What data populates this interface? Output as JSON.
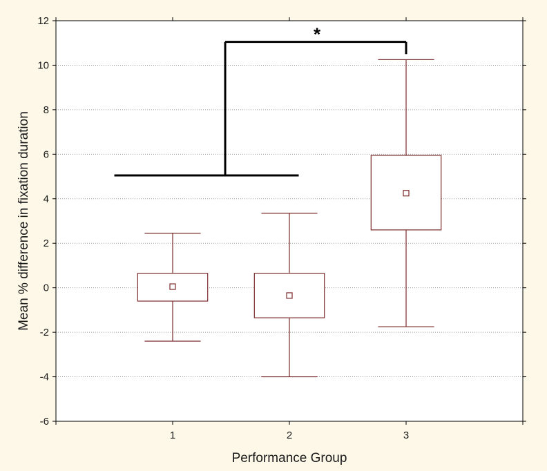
{
  "chart_data": {
    "type": "box",
    "xlabel": "Performance Group",
    "ylabel": "Mean % difference in fixation duration",
    "ylim": [
      -6,
      12
    ],
    "yticks": [
      -6,
      -4,
      -2,
      0,
      2,
      4,
      6,
      8,
      10,
      12
    ],
    "xlim": [
      0,
      4
    ],
    "xticks": [
      "1",
      "2",
      "3"
    ],
    "grid": true,
    "colors": {
      "box": "#7a2a2a",
      "grid": "#9a9a9a",
      "bracket": "#000000"
    },
    "groups": [
      {
        "label": "1",
        "x": 1,
        "mean": 0.05,
        "box_low": -0.6,
        "box_high": 0.65,
        "whisker_low": -2.4,
        "whisker_high": 2.45
      },
      {
        "label": "2",
        "x": 2,
        "mean": -0.35,
        "box_low": -1.35,
        "box_high": 0.65,
        "whisker_low": -4.0,
        "whisker_high": 3.35
      },
      {
        "label": "3",
        "x": 3,
        "mean": 4.25,
        "box_low": 2.6,
        "box_high": 5.95,
        "whisker_low": -1.75,
        "whisker_high": 10.25
      }
    ],
    "significance": {
      "label": "*",
      "left_x_start": 0.5,
      "left_x_end": 2.08,
      "left_y": 5.05,
      "join_x": 1.45,
      "right_x": 3.0,
      "top_y": 11.05,
      "right_drop_y": 10.5
    }
  }
}
